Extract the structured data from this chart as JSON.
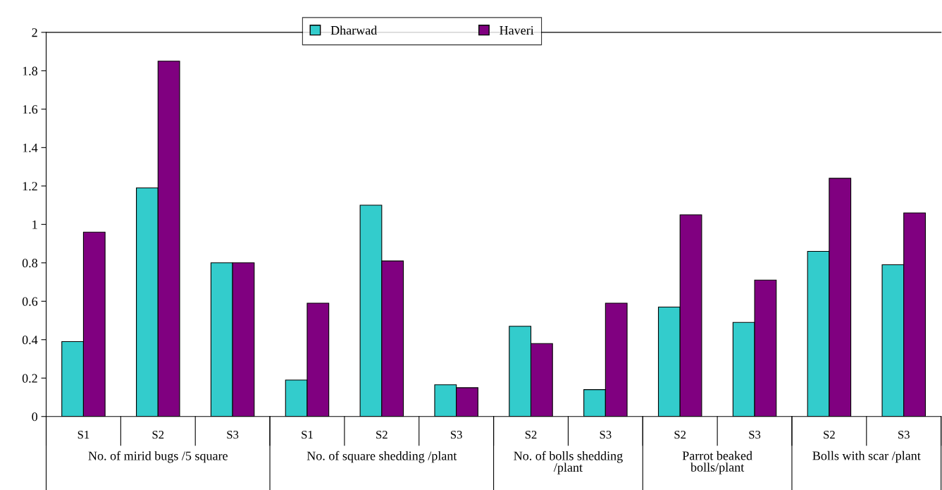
{
  "chart_data": {
    "type": "bar",
    "categories": [
      "S1",
      "S2",
      "S3",
      "S1",
      "S2",
      "S3",
      "S2",
      "S3",
      "S2",
      "S3",
      "S2",
      "S3"
    ],
    "series": [
      {
        "name": "Dharwad",
        "color": "#33cccc",
        "values": [
          0.39,
          1.19,
          0.8,
          0.19,
          1.1,
          0.165,
          0.47,
          0.14,
          0.57,
          0.49,
          0.86,
          0.79
        ]
      },
      {
        "name": "Haveri",
        "color": "#800080",
        "values": [
          0.96,
          1.85,
          0.8,
          0.59,
          0.81,
          0.15,
          0.38,
          0.59,
          1.05,
          0.71,
          1.24,
          1.06
        ]
      }
    ],
    "annotations": [
      "No. of mirid bugs /5 square",
      "No. of square shedding /plant",
      "No. of bolls shedding\n/plant",
      "Parrot beaked\nbolls/plant",
      "Bolls with scar /plant"
    ],
    "ylim": [
      0,
      2
    ],
    "yticks": [
      0,
      0.2,
      0.4,
      0.6,
      0.8,
      1,
      1.2,
      1.4,
      1.6,
      1.8,
      2
    ],
    "grid": false,
    "legend": "top"
  }
}
